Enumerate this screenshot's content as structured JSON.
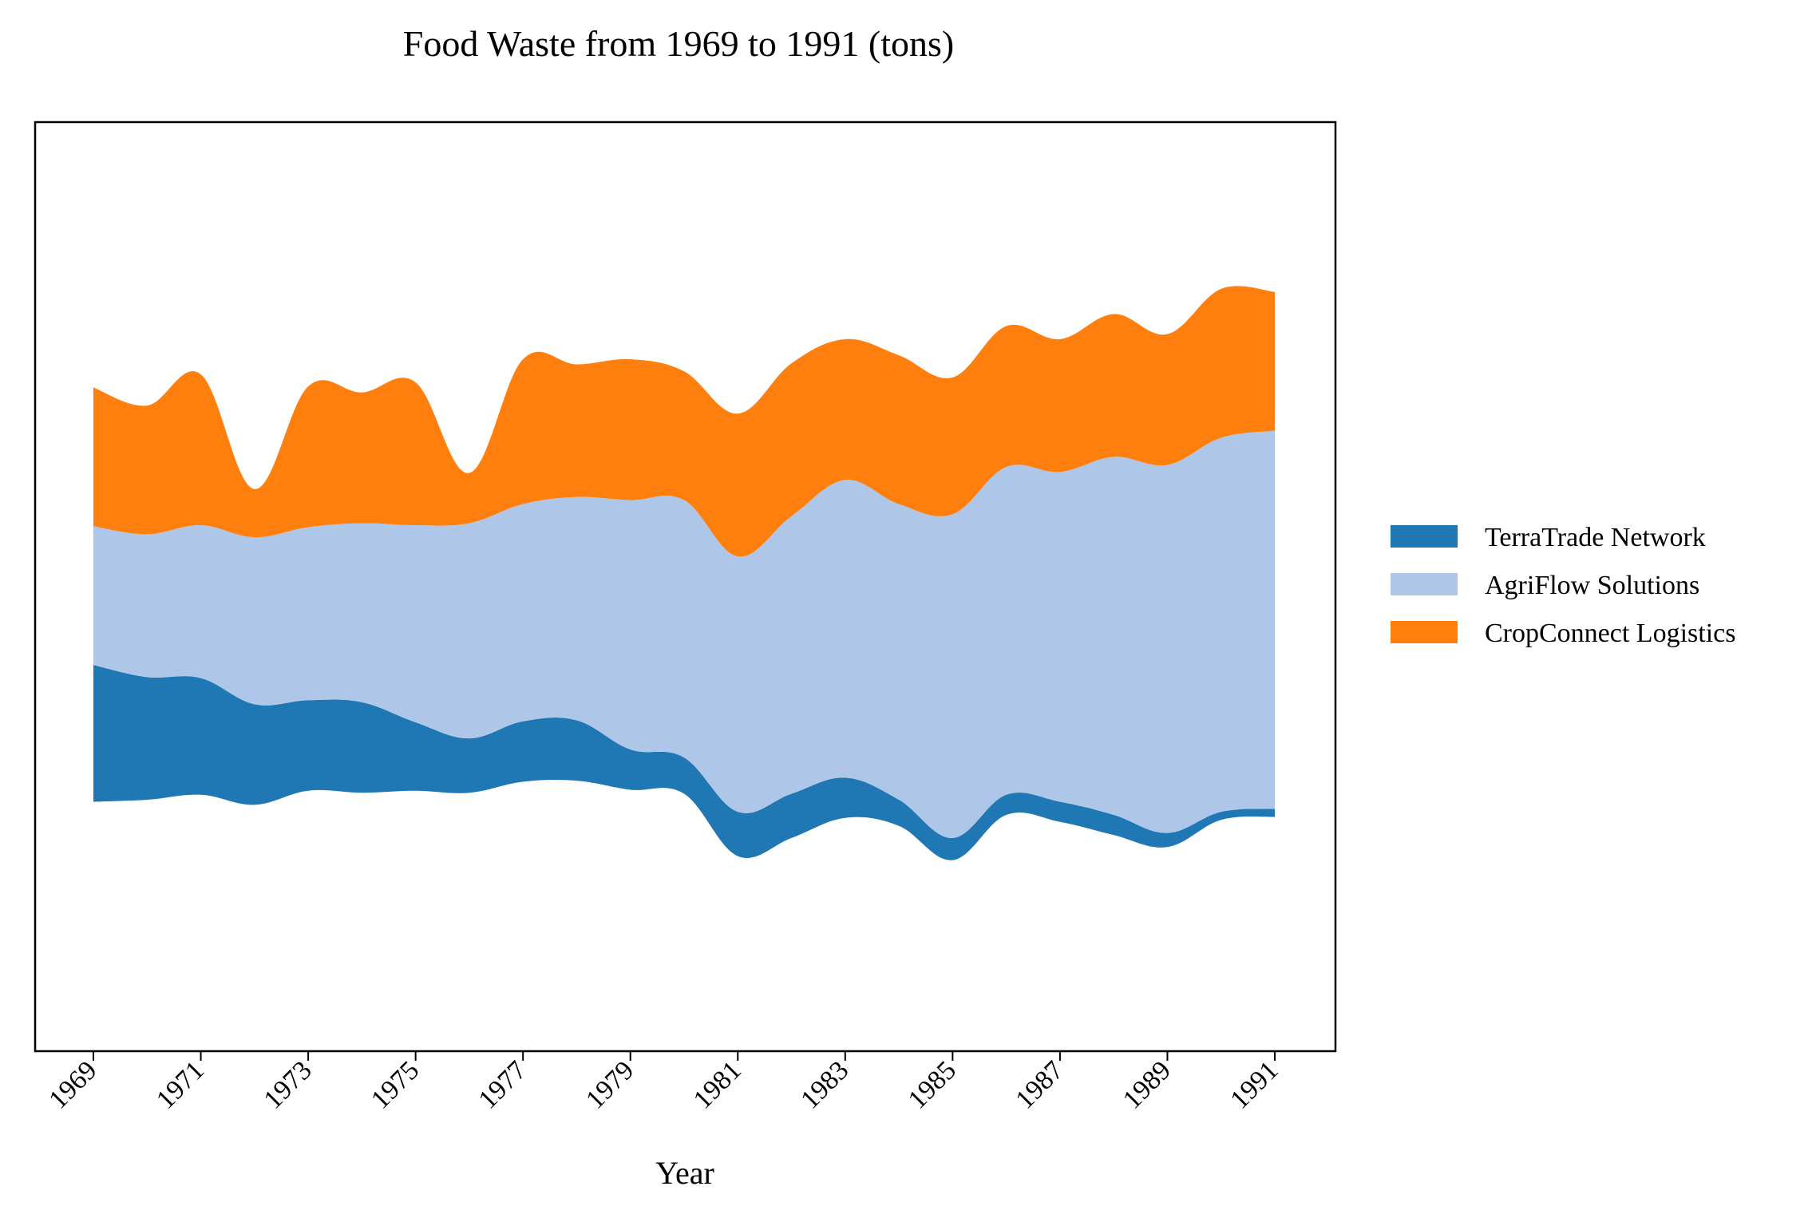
{
  "chart_data": {
    "type": "area",
    "subtype": "streamgraph",
    "title": "Food Waste from 1969 to 1991 (tons)",
    "xlabel": "Year",
    "ylabel": "",
    "x": [
      1969,
      1970,
      1971,
      1972,
      1973,
      1974,
      1975,
      1976,
      1977,
      1978,
      1979,
      1980,
      1981,
      1982,
      1983,
      1984,
      1985,
      1986,
      1987,
      1988,
      1989,
      1990,
      1991
    ],
    "x_tick_labels": [
      "1969",
      "1971",
      "1973",
      "1975",
      "1977",
      "1979",
      "1981",
      "1983",
      "1985",
      "1987",
      "1989",
      "1991"
    ],
    "y_ticks_visible": false,
    "grid": false,
    "legend_position": "right",
    "series": [
      {
        "name": "TerraTrade Network",
        "color": "#1f77b4",
        "values": [
          68,
          61,
          58,
          50,
          45,
          45,
          34,
          27,
          30,
          30,
          20,
          18,
          22,
          22,
          20,
          13,
          11,
          10,
          10,
          10,
          7,
          4,
          4
        ]
      },
      {
        "name": "AgriFlow Solutions",
        "color": "#aec7e8",
        "values": [
          69,
          71,
          76,
          83,
          86,
          89,
          98,
          107,
          108,
          111,
          124,
          128,
          127,
          138,
          148,
          147,
          161,
          163,
          164,
          178,
          183,
          186,
          188
        ]
      },
      {
        "name": "CropConnect Logistics",
        "color": "#ff7f0e",
        "values": [
          69,
          64,
          75,
          24,
          70,
          65,
          71,
          25,
          72,
          66,
          70,
          64,
          71,
          76,
          70,
          74,
          68,
          70,
          66,
          71,
          65,
          74,
          69
        ]
      }
    ],
    "baseline_offsets": [
      0,
      -4,
      5,
      -26,
      3,
      1,
      4,
      -19,
      12,
      11,
      10,
      6,
      -20,
      -3,
      8,
      2,
      -12,
      12,
      7,
      10,
      2,
      20,
      20
    ]
  }
}
